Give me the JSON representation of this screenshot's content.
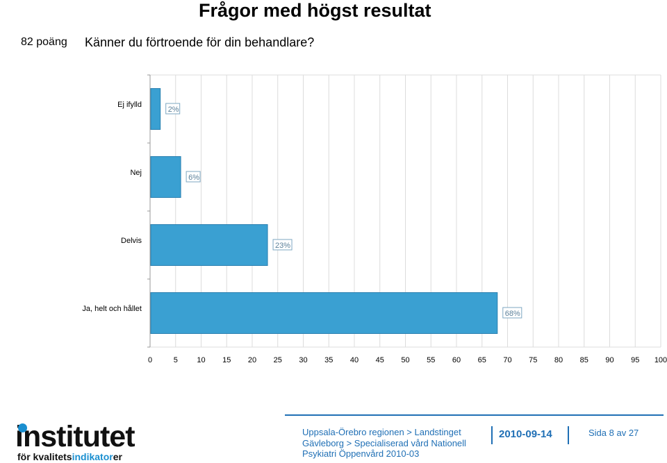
{
  "header": {
    "title": "Frågor med högst resultat",
    "score": "82 poäng",
    "question": "Känner du förtroende för din behandlare?"
  },
  "chart_data": {
    "type": "bar",
    "orientation": "horizontal",
    "categories": [
      "Ej ifylld",
      "Nej",
      "Delvis",
      "Ja, helt och hållet"
    ],
    "values": [
      2,
      6,
      23,
      68
    ],
    "value_labels": [
      "2%",
      "6%",
      "23%",
      "68%"
    ],
    "xlim": [
      0,
      100
    ],
    "xticks": [
      0,
      5,
      10,
      15,
      20,
      25,
      30,
      35,
      40,
      45,
      50,
      55,
      60,
      65,
      70,
      75,
      80,
      85,
      90,
      95,
      100
    ],
    "grid": true,
    "bar_color": "#3aa0d2",
    "bar_edge_color": "#2a7fb0"
  },
  "footer": {
    "logo_main": "institutet",
    "logo_sub_prefix": "för kvalitets",
    "logo_sub_accent": "indikator",
    "logo_sub_suffix": "er",
    "region_line1": "Uppsala-Örebro regionen > Landstinget",
    "region_line2": "Gävleborg > Specialiserad vård Nationell",
    "region_line3": "Psykiatri Öppenvård 2010-03",
    "date": "2010-09-14",
    "page": "Sida 8 av 27",
    "accent_color": "#1f6fb5"
  }
}
